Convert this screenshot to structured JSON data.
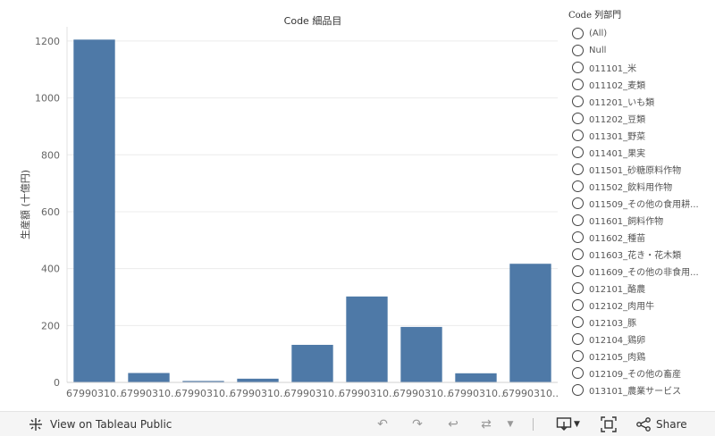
{
  "chart_data": {
    "type": "bar",
    "title": "Code 細品目",
    "ylabel": "生産額 (十億円)",
    "xlabel": "",
    "categories": [
      "67990310..",
      "67990310..",
      "67990310..",
      "67990310..",
      "67990310..",
      "67990310..",
      "67990310..",
      "67990310..",
      "67990310.."
    ],
    "values": [
      1205,
      33,
      5,
      13,
      132,
      302,
      195,
      32,
      417
    ],
    "ylim": [
      0,
      1250
    ],
    "yticks": [
      0,
      200,
      400,
      600,
      800,
      1000,
      1200
    ],
    "grid": true,
    "bar_color": "#4e79a7"
  },
  "filter": {
    "title": "Code 列部門",
    "items": [
      "(All)",
      "Null",
      "011101_米",
      "011102_麦類",
      "011201_いも類",
      "011202_豆類",
      "011301_野菜",
      "011401_果実",
      "011501_砂糖原料作物",
      "011502_飲料用作物",
      "011509_その他の食用耕...",
      "011601_飼料作物",
      "011602_種苗",
      "011603_花き・花木類",
      "011609_その他の非食用...",
      "012101_酪農",
      "012102_肉用牛",
      "012103_豚",
      "012104_鶏卵",
      "012105_肉鶏",
      "012109_その他の畜産",
      "013101_農業サービス"
    ]
  },
  "toolbar": {
    "view_label": "View on Tableau Public",
    "share_label": "Share"
  }
}
